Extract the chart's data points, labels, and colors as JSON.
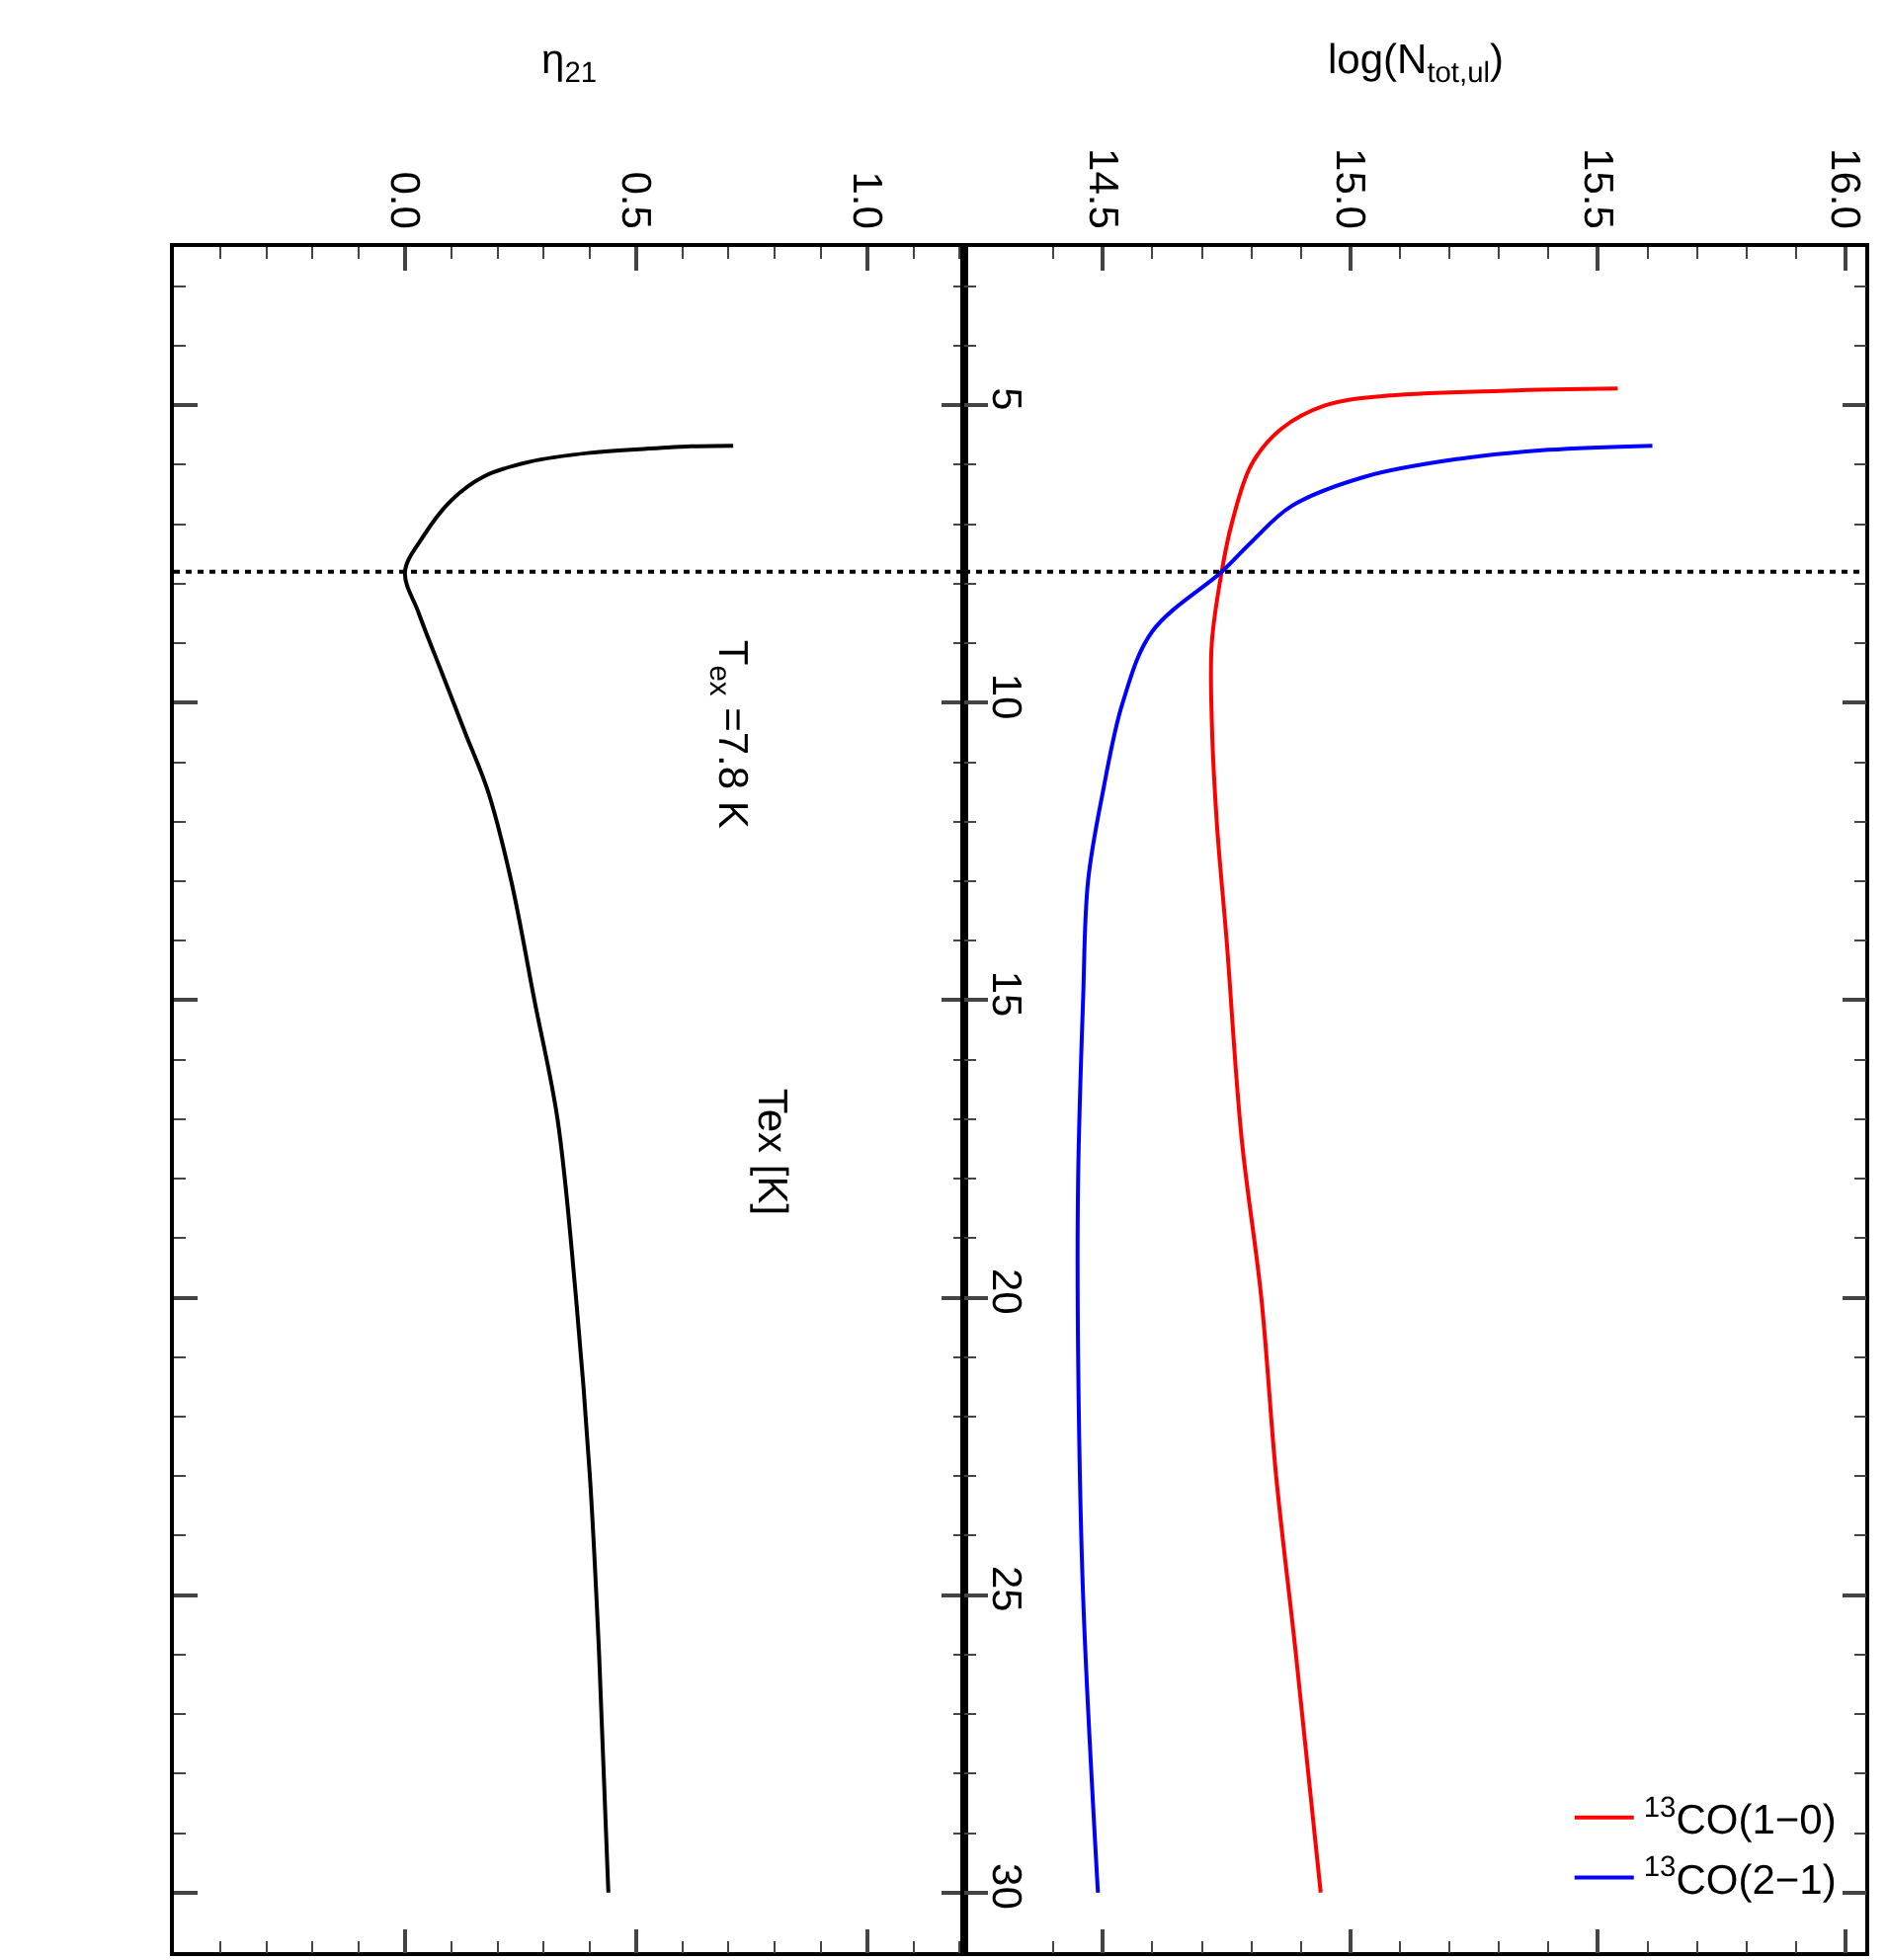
{
  "chart_data": [
    {
      "type": "line",
      "xlabel": "η$_{21}$",
      "ylabel": "Tex [K]",
      "tick_labels": "x",
      "xlim": [
        -0.5,
        1.21
      ],
      "xticks": [
        {
          "value": 0,
          "label": "0.0"
        },
        0.5,
        {
          "value": 1,
          "label": "1.0"
        }
      ],
      "ylim": [
        31,
        2.34
      ],
      "yticks": [
        5,
        10,
        15,
        20,
        25,
        30
      ],
      "ref_lines": [
        {
          "axis": "y",
          "value": 7.8,
          "label": "T$_{ex}$ =7.8 K",
          "line_style": "dotted",
          "color": "#000000"
        }
      ],
      "series": [
        {
          "color": "#000000",
          "x": [
            0.71,
            0.62,
            0.55,
            0.4,
            0.27,
            0.17,
            0.1,
            0.04,
            0,
            0.03,
            0.08,
            0.13,
            0.18,
            0.23,
            0.28,
            0.33,
            0.37,
            0.4,
            0.42,
            0.44
          ],
          "values": [
            5.68,
            5.69,
            5.72,
            5.8,
            5.95,
            6.2,
            6.6,
            7.2,
            7.8,
            8.5,
            9.5,
            10.5,
            11.5,
            13,
            15,
            17,
            20,
            23,
            26,
            30
          ]
        }
      ]
    },
    {
      "type": "line",
      "xlabel": "log(N$_{tot,ul}$)",
      "xlim": [
        14.22,
        16.04
      ],
      "xticks": [
        14.5,
        {
          "value": 15,
          "label": "15.0"
        },
        15.5,
        {
          "value": 16,
          "label": "16.0"
        }
      ],
      "ylim": [
        31,
        2.34
      ],
      "yticks": [
        5,
        10,
        15,
        20,
        25,
        30
      ],
      "legend": "bottom right",
      "ref_lines": [
        {
          "axis": "y",
          "value": 7.8,
          "line_style": "dotted",
          "color": "#000000"
        }
      ],
      "series": [
        {
          "name": "$^{13}$CO(1−0)",
          "color": "#ff0000",
          "x": [
            15.54,
            15.3,
            15.06,
            14.95,
            14.86,
            14.8,
            14.76,
            14.74,
            14.72,
            14.72,
            14.73,
            14.75,
            14.78,
            14.82,
            14.85,
            14.89,
            14.94
          ],
          "values": [
            4.72,
            4.76,
            4.85,
            5.0,
            5.4,
            6.0,
            7.0,
            7.8,
            9,
            10.3,
            12,
            14,
            17.3,
            20,
            23,
            26,
            30
          ]
        },
        {
          "name": "$^{13}$CO(2−1)",
          "color": "#0000ff",
          "x": [
            15.61,
            15.4,
            15.22,
            15.03,
            14.88,
            14.8,
            14.74,
            14.6,
            14.54,
            14.5,
            14.47,
            14.46,
            14.45,
            14.45,
            14.46,
            14.49
          ],
          "values": [
            5.68,
            5.75,
            5.9,
            6.2,
            6.7,
            7.3,
            7.8,
            8.8,
            10,
            11.5,
            13,
            15,
            18,
            21,
            25,
            30
          ]
        }
      ]
    }
  ]
}
